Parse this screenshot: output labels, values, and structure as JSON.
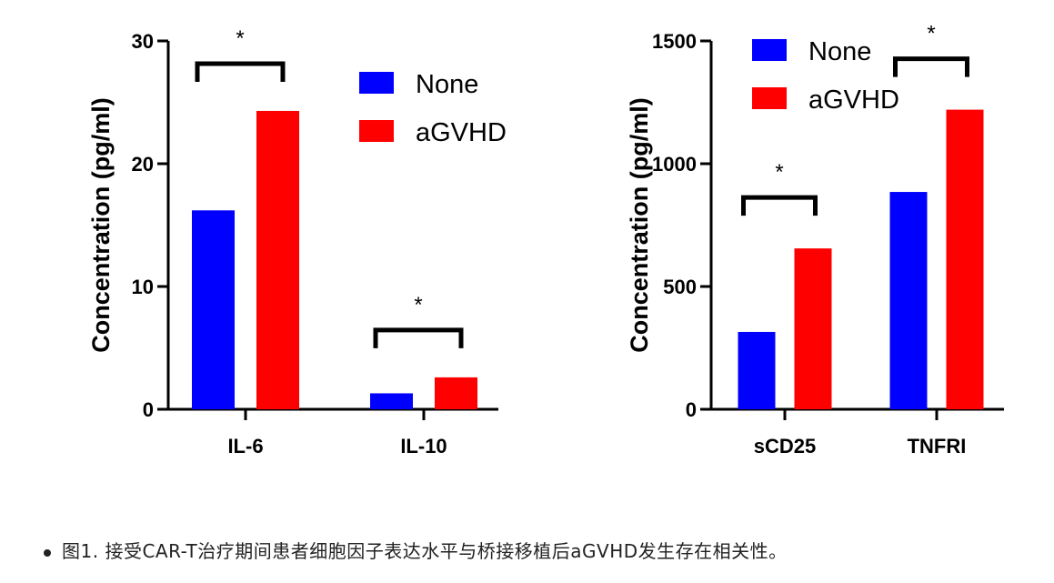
{
  "caption": "图1. 接受CAR-T治疗期间患者细胞因子表达水平与桥接移植后aGVHD发生存在相关性。",
  "colors": {
    "None": "#0000ff",
    "aGVHD": "#ff0000"
  },
  "chart_data": [
    {
      "type": "bar",
      "ylabel": "Concentration (pg/ml)",
      "ylim": [
        0,
        30
      ],
      "yticks": [
        0,
        10,
        20,
        30
      ],
      "categories": [
        "IL-6",
        "IL-10"
      ],
      "series": [
        {
          "name": "None",
          "values": [
            16.2,
            1.3
          ]
        },
        {
          "name": "aGVHD",
          "values": [
            24.3,
            2.6
          ]
        }
      ],
      "significance": [
        "*",
        "*"
      ],
      "legend": "top-right"
    },
    {
      "type": "bar",
      "ylabel": "Concentration (pg/ml)",
      "ylim": [
        0,
        1500
      ],
      "yticks": [
        0,
        500,
        1000,
        1500
      ],
      "categories": [
        "sCD25",
        "TNFRI"
      ],
      "series": [
        {
          "name": "None",
          "values": [
            315,
            885
          ]
        },
        {
          "name": "aGVHD",
          "values": [
            655,
            1220
          ]
        }
      ],
      "significance": [
        "*",
        "*"
      ],
      "legend": "top-left"
    }
  ]
}
